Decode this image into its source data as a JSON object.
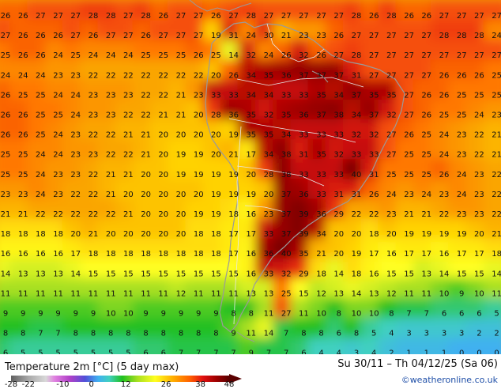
{
  "title": "Temperature 2m [°C] (5 day max)",
  "date_range": "Su 30/11 – Th 04/12/25 (Sa 06)",
  "credit": "©weatheronline.co.uk",
  "colorbar": {
    "ticks": [
      "-28",
      "-22",
      "-10",
      "0",
      "12",
      "26",
      "38",
      "48"
    ],
    "tick_values": [
      -28,
      -22,
      -10,
      0,
      12,
      26,
      38,
      48
    ],
    "min": -28,
    "max": 48
  },
  "colors": {
    "coast": "#9a9a9a",
    "border": "#e8e8e8",
    "label": "#111111"
  },
  "grid_rows": [
    "26 26 27 27 27 28 28 27 28 26 27 27 26 27 28 27 27 27 27 27 28 26 28 26 26 27 27 27 27",
    "27 26 26 26 27 26 27 27 26 27 27 27 19 31 24 30 21 23 23 26 27 27 27 27 27 28 28 28 24",
    "25 26 26 24 25 24 24 24 25 25 25 26 25 14 32 24 26 32 26 27 28 27 27 27 27 27 27 27 27",
    "24 24 24 23 23 22 22 22 22 22 22 22 20 26 34 35 36 37 37 37 31 27 27 27 27 26 26 26 25",
    "26 25 25 24 24 23 23 23 22 22 21 23 33 33 34 34 33 33 35 34 37 35 35 27 26 26 25 25 25",
    "26 26 25 25 24 23 23 22 22 21 21 20 28 36 35 32 35 36 37 38 34 37 32 27 26 25 25 24 23",
    "26 26 25 24 23 22 22 21 21 20 20 20 20 19 35 35 34 33 33 33 32 32 27 26 25 24 23 22 21",
    "25 25 24 24 23 23 22 22 21 20 19 19 20 21 17 34 38 31 35 32 33 33 27 25 25 24 23 22 21",
    "25 25 24 23 23 22 21 21 20 20 19 19 19 19 20 28 38 33 33 33 40 31 25 25 25 26 24 23 22",
    "23 23 24 23 22 22 21 20 20 20 20 20 19 19 19 20 37 36 33 31 31 26 24 23 24 23 24 23 22",
    "21 21 22 22 22 22 22 21 20 20 20 19 19 18 16 23 37 39 36 29 22 22 23 21 21 22 23 23 22",
    "18 18 18 18 20 21 20 20 20 20 20 18 18 17 17 33 37 39 34 20 20 18 20 19 19 19 19 20 21",
    "16 16 16 16 17 18 18 18 18 18 18 18 18 17 16 36 40 35 21 20 19 17 16 17 17 16 17 17 18",
    "14 13 13 13 14 15 15 15 15 15 15 15 15 15 16 33 32 29 18 14 18 16 15 15 13 14 15 15 14",
    "11 11 11 11 11 11 11 11 11 11 12 11 11 11 13 13 25 15 12 13 14 13 12 11 11 10 9 10 11",
    "9 9 9 9 9 9 10 10 9 9 9 9 9 8 8 11 27 11 10 8 10 10 8 7 7 6 6 6 5",
    "8 8 7 7 8 8 8 8 8 8 8 8 8 9 11 14 7 8 8 6 8 5 4 3 3 3 3 2 2",
    "6 5 5 5 5 5 5 5 6 6 7 7 7 7 9 7 7 6 4 4 3 4 2 1 1 1 0 0 0"
  ]
}
